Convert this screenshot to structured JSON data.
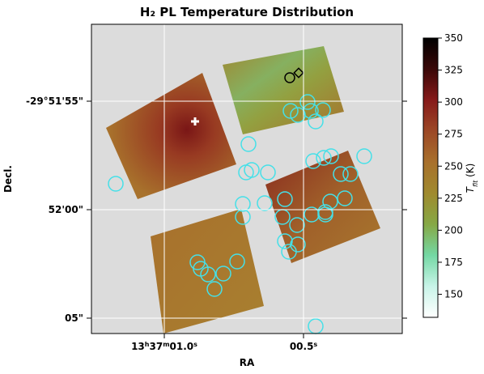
{
  "chart_data": {
    "type": "image",
    "title": "H₂ PL Temperature Distribution",
    "x_label": "RA",
    "y_label": "Decl.",
    "x_tick_labels": [
      [
        "13",
        "h",
        "37",
        "m",
        "01.0",
        "s"
      ],
      [
        "00.5",
        "s"
      ]
    ],
    "y_tick_labels": [
      "-29°51'55\"",
      "52'00\"",
      "05\""
    ],
    "colorbar_label": [
      "T",
      "fit",
      " (K)"
    ],
    "clim": [
      132,
      350
    ],
    "cticks": [
      150,
      175,
      200,
      225,
      250,
      275,
      300,
      325,
      350
    ],
    "colormap": [
      "#ffffff",
      "#c8f4e8",
      "#74d8a4",
      "#86a845",
      "#a08a2e",
      "#a8702c",
      "#9c4826",
      "#861a1a",
      "#3a0808",
      "#000000"
    ],
    "background": "#dcdcdc",
    "grid": true
  }
}
